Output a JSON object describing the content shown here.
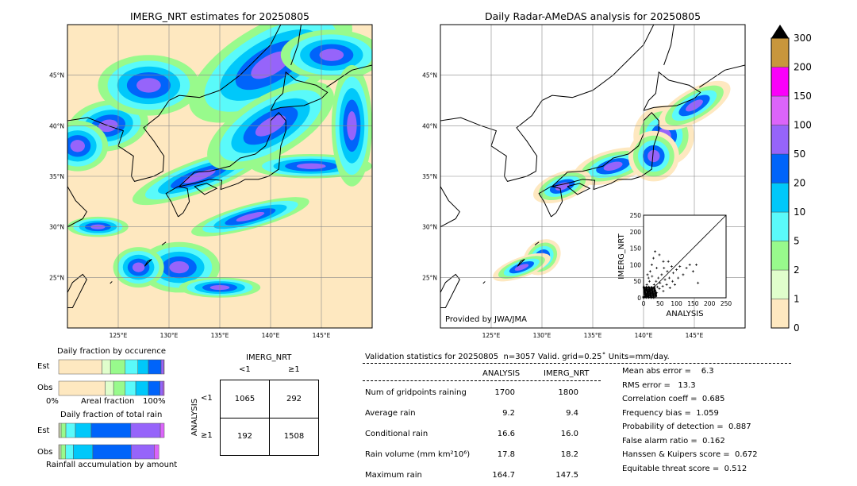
{
  "left_map": {
    "title": "IMERG_NRT estimates for 20250805",
    "lon_ticks": [
      "125°E",
      "130°E",
      "135°E",
      "140°E",
      "145°E"
    ],
    "lat_ticks": [
      "45°N",
      "40°N",
      "35°N",
      "30°N",
      "25°N"
    ]
  },
  "right_map": {
    "title": "Daily Radar-AMeDAS analysis for 20250805",
    "lon_ticks": [
      "125°E",
      "130°E",
      "135°E",
      "140°E",
      "145°E"
    ],
    "lat_ticks": [
      "45°N",
      "40°N",
      "35°N",
      "30°N",
      "25°N"
    ],
    "credit": "Provided by JWA/JMA"
  },
  "colorbar": {
    "labels": [
      "0",
      "1",
      "2",
      "5",
      "10",
      "20",
      "50",
      "100",
      "150",
      "200",
      "300"
    ],
    "colors": [
      "#fee8c0",
      "#e0fecc",
      "#98fa8c",
      "#5afafa",
      "#00c8fa",
      "#0064fa",
      "#9664fa",
      "#dc64fa",
      "#fa00fa",
      "#c8963c"
    ],
    "extend_color": "#000000"
  },
  "chart_data": [
    {
      "type": "scatter",
      "title": "",
      "xlabel": "ANALYSIS",
      "ylabel": "IMERG_NRT",
      "xlim": [
        0,
        250
      ],
      "ylim": [
        0,
        250
      ],
      "ticks": [
        "0",
        "50",
        "100",
        "150",
        "200",
        "250"
      ],
      "points": [
        [
          5,
          3
        ],
        [
          8,
          12
        ],
        [
          12,
          6
        ],
        [
          15,
          20
        ],
        [
          18,
          9
        ],
        [
          20,
          25
        ],
        [
          22,
          14
        ],
        [
          25,
          30
        ],
        [
          28,
          18
        ],
        [
          30,
          10
        ],
        [
          32,
          40
        ],
        [
          35,
          22
        ],
        [
          38,
          50
        ],
        [
          40,
          15
        ],
        [
          42,
          33
        ],
        [
          45,
          60
        ],
        [
          48,
          28
        ],
        [
          50,
          45
        ],
        [
          55,
          70
        ],
        [
          58,
          35
        ],
        [
          60,
          20
        ],
        [
          62,
          90
        ],
        [
          65,
          55
        ],
        [
          70,
          40
        ],
        [
          72,
          80
        ],
        [
          75,
          110
        ],
        [
          78,
          60
        ],
        [
          80,
          30
        ],
        [
          85,
          95
        ],
        [
          88,
          50
        ],
        [
          90,
          75
        ],
        [
          95,
          40
        ],
        [
          100,
          85
        ],
        [
          105,
          60
        ],
        [
          110,
          95
        ],
        [
          120,
          70
        ],
        [
          130,
          90
        ],
        [
          140,
          100
        ],
        [
          150,
          80
        ],
        [
          160,
          100
        ],
        [
          165,
          45
        ],
        [
          10,
          40
        ],
        [
          15,
          60
        ],
        [
          20,
          80
        ],
        [
          25,
          100
        ],
        [
          30,
          120
        ],
        [
          35,
          140
        ],
        [
          12,
          70
        ],
        [
          6,
          25
        ],
        [
          3,
          10
        ],
        [
          48,
          130
        ],
        [
          60,
          110
        ],
        [
          40,
          90
        ],
        [
          18,
          50
        ],
        [
          26,
          65
        ]
      ]
    },
    {
      "type": "bar",
      "title": "Daily fraction by occurence",
      "xlabel": "Areal fraction",
      "x_left": "0%",
      "x_right": "100%",
      "rows": [
        {
          "name": "Est",
          "values": [
            0.41,
            0.08,
            0.14,
            0.12,
            0.1,
            0.12,
            0.025,
            0.005
          ]
        },
        {
          "name": "Obs",
          "values": [
            0.44,
            0.08,
            0.11,
            0.1,
            0.12,
            0.11,
            0.03,
            0.01
          ]
        }
      ]
    },
    {
      "type": "bar",
      "title": "Daily fraction of total rain",
      "xlabel": "Rainfall accumulation by amount",
      "rows": [
        {
          "name": "Est",
          "values": [
            0.008,
            0.015,
            0.045,
            0.09,
            0.15,
            0.375,
            0.28,
            0.037
          ]
        },
        {
          "name": "Obs",
          "values": [
            0.008,
            0.015,
            0.045,
            0.075,
            0.19,
            0.375,
            0.225,
            0.045
          ],
          "total": 0.97
        }
      ]
    },
    {
      "type": "table",
      "title": "IMERG_NRT",
      "row_label": "ANALYSIS",
      "col_headers": [
        "<1",
        "≥1"
      ],
      "row_headers": [
        "<1",
        "≥1"
      ],
      "cells": [
        [
          "1065",
          "292"
        ],
        [
          "192",
          "1508"
        ]
      ]
    }
  ],
  "stats": {
    "header": "Validation statistics for 20250805  n=3057 Valid. grid=0.25˚ Units=mm/day.",
    "col_analysis": "ANALYSIS",
    "col_imerg": "IMERG_NRT",
    "rows": [
      {
        "label": "Num of gridpoints raining",
        "a": "1700",
        "b": "1800"
      },
      {
        "label": "Average rain",
        "a": "9.2",
        "b": "9.4"
      },
      {
        "label": "Conditional rain",
        "a": "16.6",
        "b": "16.0"
      },
      {
        "label": "Rain volume (mm km²10⁶)",
        "a": "17.8",
        "b": "18.2"
      },
      {
        "label": "Maximum rain",
        "a": "164.7",
        "b": "147.5"
      }
    ],
    "scores": [
      "Mean abs error =    6.3",
      "RMS error =   13.3",
      "Correlation coeff =  0.685",
      "Frequency bias =  1.059",
      "Probability of detection =  0.887",
      "False alarm ratio =  0.162",
      "Hanssen & Kuipers score =  0.672",
      "Equitable threat score =  0.512"
    ]
  }
}
